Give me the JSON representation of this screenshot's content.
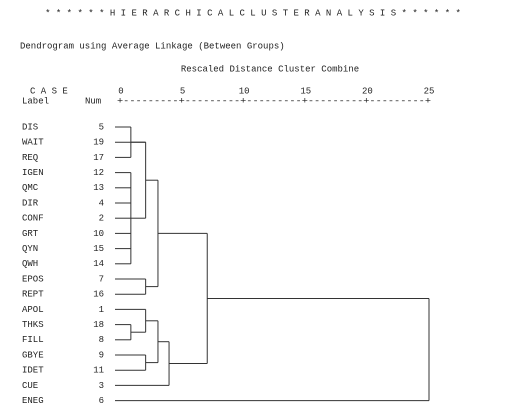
{
  "chart_data": {
    "type": "dendrogram",
    "title": "* * * * * * H I E R A R C H I C A L   C L U S T E R   A N A L Y S I S * * * * * *",
    "subtitle": "Dendrogram using Average Linkage (Between Groups)",
    "x_label": "Rescaled Distance Cluster Combine",
    "case_header": "C A S E",
    "label_header": "Label",
    "num_header": "Num",
    "ruler": "+---------+---------+---------+---------+---------+",
    "xlim": [
      0,
      25
    ],
    "xticks": [
      0,
      5,
      10,
      15,
      20,
      25
    ],
    "labels": [
      "DIS",
      "WAIT",
      "REQ",
      "IGEN",
      "QMC",
      "DIR",
      "CONF",
      "GRT",
      "QYN",
      "QWH",
      "EPOS",
      "REPT",
      "APOL",
      "THKS",
      "FILL",
      "GBYE",
      "IDET",
      "CUE",
      "ENEG"
    ],
    "nums": [
      5,
      19,
      17,
      12,
      13,
      4,
      2,
      10,
      15,
      14,
      7,
      16,
      1,
      18,
      8,
      9,
      11,
      3,
      6
    ],
    "merges": [
      {
        "children": [
          0,
          2
        ],
        "distance": 0.8
      },
      {
        "children": [
          19,
          1
        ],
        "distance": 2
      },
      {
        "children": [
          3,
          4,
          5,
          6,
          7,
          8,
          9
        ],
        "distance": 0.8
      },
      {
        "children": [
          20,
          21
        ],
        "distance": 2
      },
      {
        "children": [
          10,
          11
        ],
        "distance": 2
      },
      {
        "children": [
          22,
          23
        ],
        "distance": 3
      },
      {
        "children": [
          13,
          14
        ],
        "distance": 0.8
      },
      {
        "children": [
          12,
          25
        ],
        "distance": 2
      },
      {
        "children": [
          15,
          16
        ],
        "distance": 2
      },
      {
        "children": [
          26,
          27
        ],
        "distance": 3
      },
      {
        "children": [
          28,
          17
        ],
        "distance": 3.9
      },
      {
        "children": [
          24,
          29
        ],
        "distance": 7
      },
      {
        "children": [
          30,
          18
        ],
        "distance": 25
      }
    ]
  }
}
